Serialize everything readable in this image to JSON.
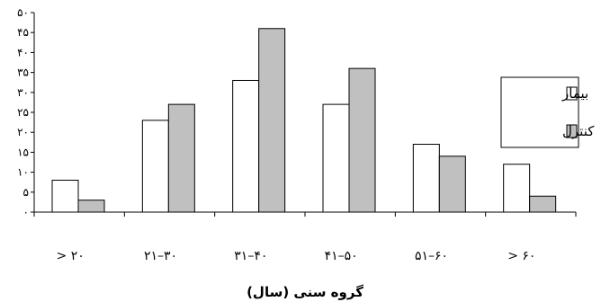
{
  "chart_data": {
    "type": "bar",
    "categories": [
      "> ۲۰",
      "۲۱–۳۰",
      "۳۱–۴۰",
      "۴۱–۵۰",
      "۵۱–۶۰",
      "> ۶۰"
    ],
    "series": [
      {
        "name": "بیمار",
        "values": [
          8,
          23,
          33,
          27,
          17,
          12
        ],
        "color": "#ffffff"
      },
      {
        "name": "کنترل",
        "values": [
          3,
          27,
          46,
          36,
          14,
          4
        ],
        "color": "#c0c0c0"
      }
    ],
    "y_ticks": [
      {
        "value": 0,
        "label": "۰"
      },
      {
        "value": 5,
        "label": "۵"
      },
      {
        "value": 10,
        "label": "۱۰"
      },
      {
        "value": 15,
        "label": "۱۵"
      },
      {
        "value": 20,
        "label": "۲۰"
      },
      {
        "value": 25,
        "label": "۲۵"
      },
      {
        "value": 30,
        "label": "۳۰"
      },
      {
        "value": 35,
        "label": "۳۵"
      },
      {
        "value": 40,
        "label": "۴۰"
      },
      {
        "value": 45,
        "label": "۴۵"
      },
      {
        "value": 50,
        "label": "۵۰"
      }
    ],
    "xlabel": "گروه سنی (سال)",
    "ylabel": "",
    "ylim": [
      0,
      50
    ],
    "grid": false,
    "legend_position": "right"
  }
}
